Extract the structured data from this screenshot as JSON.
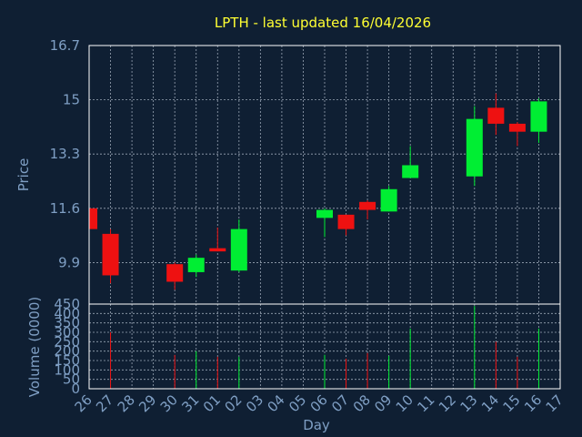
{
  "chart_data": {
    "type": "candlestick",
    "title": "LPTH - last updated 16/04/2026",
    "xlabel": "Day",
    "price_panel": {
      "ylabel": "Price",
      "ylim": [
        8.6,
        16.7
      ],
      "yticks": [
        "9.9",
        "11.6",
        "13.3",
        "15",
        "16.7"
      ],
      "ytick_values": [
        9.9,
        11.6,
        13.3,
        15,
        16.7
      ]
    },
    "volume_panel": {
      "ylabel": "Volume (0000)",
      "ylim": [
        0,
        450
      ],
      "yticks": [
        "0",
        "50",
        "100",
        "150",
        "200",
        "250",
        "300",
        "350",
        "400",
        "450"
      ],
      "ytick_values": [
        0,
        50,
        100,
        150,
        200,
        250,
        300,
        350,
        400,
        450
      ]
    },
    "x_labels": [
      "26",
      "27",
      "28",
      "29",
      "30",
      "31",
      "01",
      "02",
      "03",
      "04",
      "05",
      "06",
      "07",
      "08",
      "09",
      "10",
      "11",
      "12",
      "13",
      "14",
      "15",
      "16",
      "17"
    ],
    "candles": [
      {
        "day": "26",
        "open": 11.6,
        "high": 11.6,
        "low": 10.95,
        "close": 10.95
      },
      {
        "day": "27",
        "open": 10.8,
        "high": 10.95,
        "low": 9.25,
        "close": 9.5
      },
      {
        "day": "30",
        "open": 9.85,
        "high": 9.9,
        "low": 9.05,
        "close": 9.3
      },
      {
        "day": "31",
        "open": 9.6,
        "high": 10.15,
        "low": 9.45,
        "close": 10.05
      },
      {
        "day": "01",
        "open": 10.35,
        "high": 11.0,
        "low": 10.25,
        "close": 10.25
      },
      {
        "day": "02",
        "open": 9.65,
        "high": 11.25,
        "low": 9.6,
        "close": 10.95
      },
      {
        "day": "06",
        "open": 11.3,
        "high": 11.6,
        "low": 10.7,
        "close": 11.55
      },
      {
        "day": "07",
        "open": 11.4,
        "high": 11.4,
        "low": 10.75,
        "close": 10.95
      },
      {
        "day": "08",
        "open": 11.8,
        "high": 11.85,
        "low": 11.25,
        "close": 11.55
      },
      {
        "day": "09",
        "open": 11.5,
        "high": 12.3,
        "low": 11.5,
        "close": 12.2
      },
      {
        "day": "10",
        "open": 12.55,
        "high": 13.55,
        "low": 12.55,
        "close": 12.95
      },
      {
        "day": "13",
        "open": 12.6,
        "high": 14.8,
        "low": 12.3,
        "close": 14.4
      },
      {
        "day": "14",
        "open": 14.75,
        "high": 15.2,
        "low": 13.9,
        "close": 14.25
      },
      {
        "day": "15",
        "open": 14.25,
        "high": 14.3,
        "low": 13.55,
        "close": 14.0
      },
      {
        "day": "16",
        "open": 14.0,
        "high": 15.05,
        "low": 13.65,
        "close": 14.95
      }
    ],
    "volume": [
      {
        "day": "27",
        "value": 300
      },
      {
        "day": "30",
        "value": 180
      },
      {
        "day": "31",
        "value": 200
      },
      {
        "day": "01",
        "value": 170
      },
      {
        "day": "02",
        "value": 170
      },
      {
        "day": "06",
        "value": 180
      },
      {
        "day": "07",
        "value": 160
      },
      {
        "day": "08",
        "value": 190
      },
      {
        "day": "09",
        "value": 175
      },
      {
        "day": "10",
        "value": 320
      },
      {
        "day": "13",
        "value": 440
      },
      {
        "day": "14",
        "value": 250
      },
      {
        "day": "15",
        "value": 170
      },
      {
        "day": "16",
        "value": 320
      }
    ],
    "colors": {
      "background": "#0f1f33",
      "up": "#00ee33",
      "down": "#ee1111",
      "grid": "#c8d2e0",
      "title": "#ffff33",
      "axis_text": "#7f9fc4",
      "frame": "#ffffff"
    },
    "grid": true
  }
}
